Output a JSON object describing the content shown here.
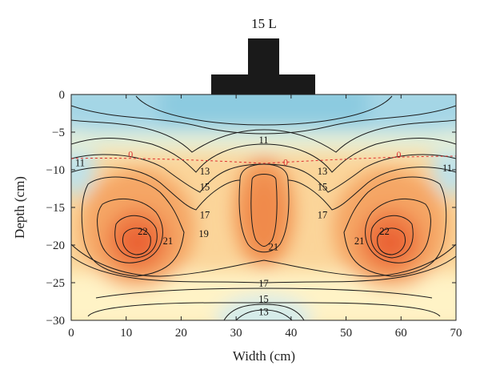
{
  "chart_data": {
    "type": "heatmap",
    "subtype": "contour",
    "title": "",
    "xlabel": "Width (cm)",
    "ylabel": "Depth (cm)",
    "xlim": [
      0,
      70
    ],
    "ylim": [
      -30,
      0
    ],
    "x_ticks": [
      "0",
      "10",
      "20",
      "30",
      "40",
      "50",
      "60",
      "70"
    ],
    "y_ticks": [
      "0",
      "−5",
      "−10",
      "−15",
      "−20",
      "−25",
      "−30"
    ],
    "emitter_label": "15 L",
    "colors": {
      "low": "#8ccbe0",
      "mid": "#fff3c0",
      "high": "#ee6a3a",
      "emitter": "#1a1a1a",
      "reference_line": "#e03030"
    },
    "contour_labels": [
      {
        "text": "11",
        "x": 35,
        "y": -6.3
      },
      {
        "text": "11",
        "x": 1.6,
        "y": -9.3
      },
      {
        "text": "11",
        "x": 68.4,
        "y": -10.0
      },
      {
        "text": "13",
        "x": 24.3,
        "y": -10.4
      },
      {
        "text": "13",
        "x": 45.7,
        "y": -10.4
      },
      {
        "text": "15",
        "x": 24.3,
        "y": -12.5
      },
      {
        "text": "15",
        "x": 45.7,
        "y": -12.5
      },
      {
        "text": "17",
        "x": 24.3,
        "y": -16.2
      },
      {
        "text": "17",
        "x": 45.7,
        "y": -16.2
      },
      {
        "text": "19",
        "x": 24.1,
        "y": -18.7
      },
      {
        "text": "21",
        "x": 17.6,
        "y": -19.7
      },
      {
        "text": "21",
        "x": 52.4,
        "y": -19.7
      },
      {
        "text": "21",
        "x": 36.8,
        "y": -20.5
      },
      {
        "text": "22",
        "x": 13.0,
        "y": -18.4
      },
      {
        "text": "22",
        "x": 57.0,
        "y": -18.4
      },
      {
        "text": "17",
        "x": 35,
        "y": -25.3
      },
      {
        "text": "15",
        "x": 35,
        "y": -27.4
      },
      {
        "text": "13",
        "x": 35,
        "y": -29.1
      }
    ],
    "reference_markers": [
      {
        "text": "0",
        "x": 10.8,
        "y": -7.9
      },
      {
        "text": "0",
        "x": 39.0,
        "y": -9.0
      },
      {
        "text": "0",
        "x": 59.6,
        "y": -8.0
      }
    ],
    "grid": false,
    "legend": "none"
  }
}
